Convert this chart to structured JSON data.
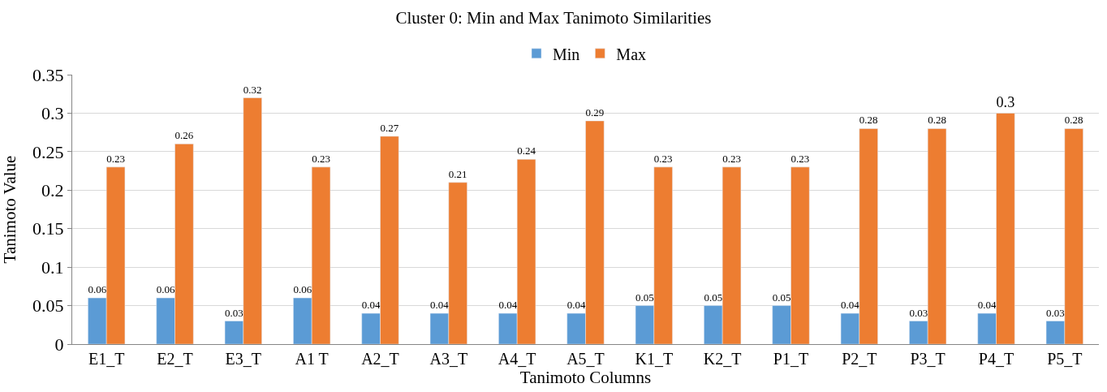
{
  "chart_data": {
    "type": "bar",
    "title": "Cluster 0: Min and Max Tanimoto Similarities",
    "xlabel": "Tanimoto Columns",
    "ylabel": "Tanimoto Value",
    "categories": [
      "E1_T",
      "E2_T",
      "E3_T",
      "A1 T",
      "A2_T",
      "A3_T",
      "A4_T",
      "A5_T",
      "K1_T",
      "K2_T",
      "P1_T",
      "P2_T",
      "P3_T",
      "P4_T",
      "P5_T"
    ],
    "series": [
      {
        "name": "Min",
        "color": "#5b9bd5",
        "values": [
          0.06,
          0.06,
          0.03,
          0.06,
          0.04,
          0.04,
          0.04,
          0.04,
          0.05,
          0.05,
          0.05,
          0.04,
          0.03,
          0.04,
          0.03
        ]
      },
      {
        "name": "Max",
        "color": "#ed7d31",
        "values": [
          0.23,
          0.26,
          0.32,
          0.23,
          0.27,
          0.21,
          0.24,
          0.29,
          0.23,
          0.23,
          0.23,
          0.28,
          0.28,
          0.3,
          0.28
        ]
      }
    ],
    "ylim": [
      0,
      0.35
    ],
    "yticks": [
      {
        "value": 0,
        "label": "0"
      },
      0.05,
      0.1,
      0.15,
      0.2,
      0.25,
      0.3,
      0.35
    ],
    "grid": "y",
    "legend": "top",
    "data_labels": true
  }
}
